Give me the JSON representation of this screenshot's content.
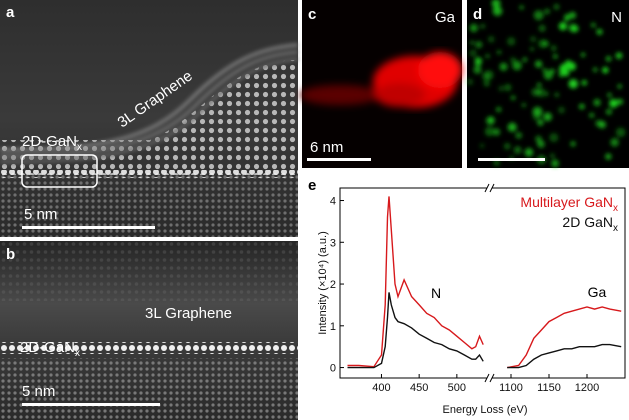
{
  "panel_a": {
    "label": "a",
    "graphene": "3L Graphene",
    "layer": "2D-GaN",
    "layer_subscript": "x",
    "scale": "5 nm"
  },
  "panel_b": {
    "label": "b",
    "graphene": "3L Graphene",
    "layer": "2D-GaN",
    "layer_subscript": "x",
    "scale": "5 nm"
  },
  "panel_c": {
    "label": "c",
    "element": "Ga",
    "scale": "6 nm"
  },
  "panel_d": {
    "label": "d",
    "element": "N"
  },
  "chart_data": {
    "type": "line",
    "panel_label": "e",
    "xlabel": "Energy Loss (eV)",
    "ylabel": "Intensity (×10⁴) (a.u.)",
    "annotations": [
      "N",
      "Ga"
    ],
    "x": [
      355,
      370,
      390,
      400,
      405,
      408,
      410,
      413,
      418,
      422,
      430,
      440,
      450,
      460,
      470,
      480,
      490,
      500,
      510,
      520,
      525,
      530,
      535,
      1085,
      1095,
      1110,
      1120,
      1130,
      1140,
      1150,
      1160,
      1170,
      1180,
      1190,
      1200,
      1210,
      1220,
      1230,
      1245
    ],
    "series": [
      {
        "name": "Multilayer GaN",
        "name_subscript": "x",
        "color": "#d7191c",
        "values": [
          0.05,
          0.05,
          0.02,
          0.3,
          1.5,
          3.6,
          4.1,
          3.3,
          2.0,
          1.7,
          2.1,
          1.7,
          1.5,
          1.3,
          1.2,
          1.0,
          0.9,
          0.75,
          0.6,
          0.45,
          0.5,
          0.75,
          0.55,
          null,
          0.0,
          0.05,
          0.3,
          0.7,
          0.9,
          1.1,
          1.2,
          1.3,
          1.35,
          1.4,
          1.45,
          1.4,
          1.45,
          1.4,
          1.35
        ]
      },
      {
        "name": "2D GaN",
        "name_subscript": "x",
        "color": "#111111",
        "values": [
          0,
          0,
          0,
          0.1,
          0.5,
          1.2,
          1.8,
          1.5,
          1.2,
          1.1,
          1.05,
          0.95,
          0.8,
          0.7,
          0.6,
          0.55,
          0.45,
          0.4,
          0.3,
          0.2,
          0.2,
          0.3,
          0.15,
          null,
          0,
          0,
          0.05,
          0.2,
          0.3,
          0.35,
          0.4,
          0.45,
          0.45,
          0.5,
          0.5,
          0.5,
          0.55,
          0.55,
          0.5
        ]
      }
    ],
    "xlim": [
      [
        345,
        540
      ],
      [
        1075,
        1250
      ]
    ],
    "xticks": [
      400,
      450,
      500,
      1100,
      1150,
      1200
    ],
    "ylim": [
      -0.25,
      4.3
    ],
    "yticks": [
      0,
      1,
      2,
      3,
      4
    ]
  }
}
